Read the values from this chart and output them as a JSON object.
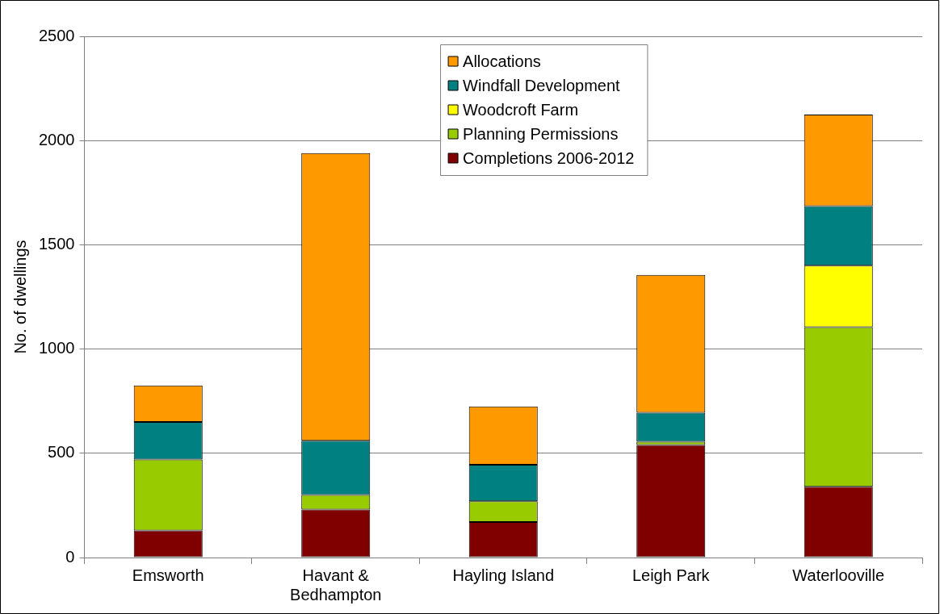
{
  "chart_data": {
    "type": "bar",
    "stacked": true,
    "ylabel": "No. of dwellings",
    "categories": [
      "Emsworth",
      "Havant & Bedhampton",
      "Hayling Island",
      "Leigh Park",
      "Waterlooville"
    ],
    "series": [
      {
        "name": "Completions 2006-2012",
        "color": "#800000",
        "values": [
          130,
          230,
          170,
          540,
          340
        ]
      },
      {
        "name": "Planning Permissions",
        "color": "#99cc00",
        "values": [
          340,
          70,
          100,
          15,
          765
        ]
      },
      {
        "name": "Woodcroft Farm",
        "color": "#ffff00",
        "values": [
          null,
          null,
          null,
          null,
          295
        ]
      },
      {
        "name": "Windfall Development",
        "color": "#008080",
        "values": [
          180,
          260,
          175,
          140,
          285
        ]
      },
      {
        "name": "Allocations",
        "color": "#ff9900",
        "values": [
          175,
          1380,
          280,
          660,
          440
        ]
      }
    ],
    "ylim": [
      0,
      2500
    ],
    "yticks": [
      0,
      500,
      1000,
      1500,
      2000,
      2500
    ],
    "grid": "y",
    "legend": "top"
  }
}
